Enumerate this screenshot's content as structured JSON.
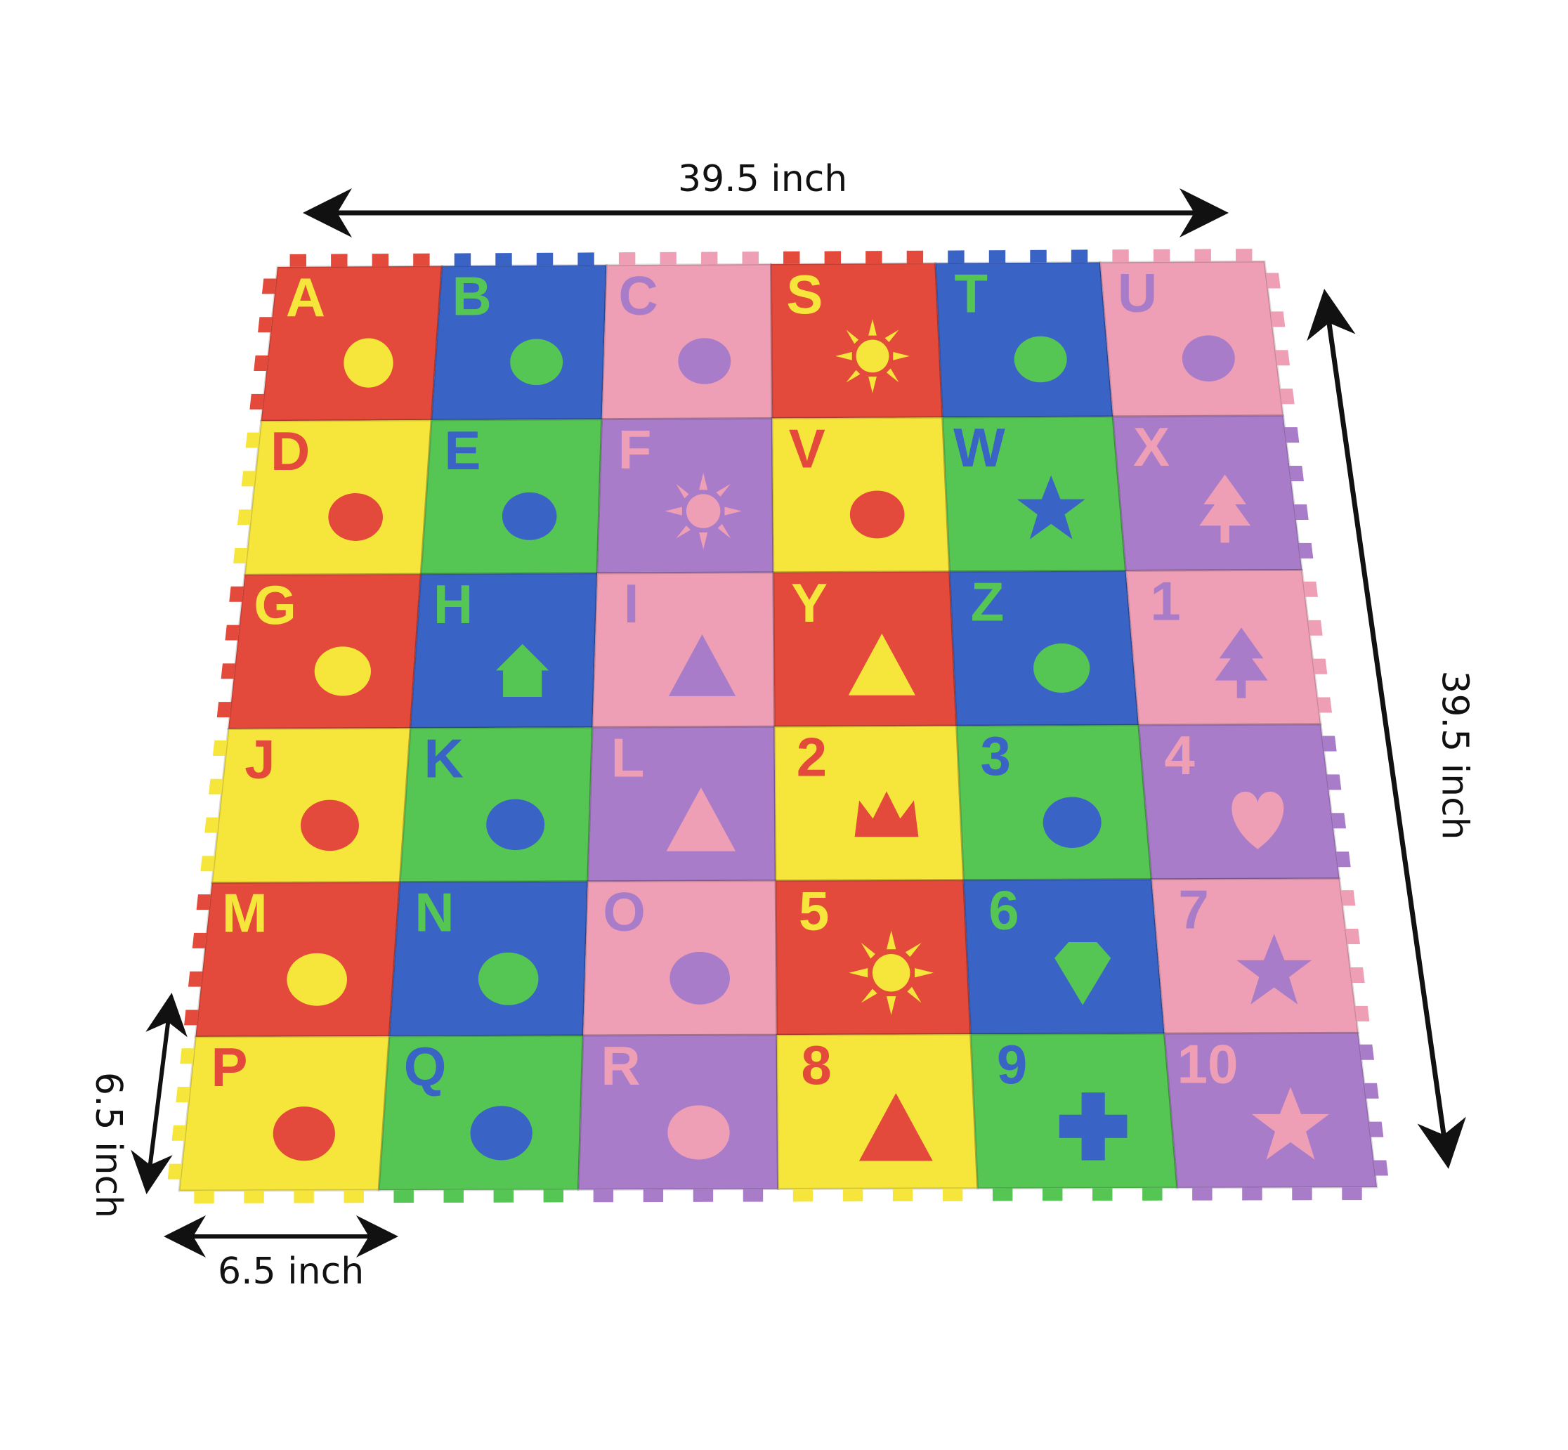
{
  "dimensions": {
    "top": "39.5 inch",
    "right": "39.5 inch",
    "tile_side": "6.5 inch",
    "tile_bottom": "6.5 inch"
  },
  "colors": {
    "red": "#e34a3b",
    "blue": "#3a63c6",
    "pink": "#ee9fb5",
    "yellow": "#f6e53a",
    "green": "#55c553",
    "purple": "#a97cc9",
    "arrow": "#111111"
  },
  "tiles": [
    {
      "label": "A",
      "bg": "red",
      "fg": "yellow",
      "icon": "apple-icon"
    },
    {
      "label": "B",
      "bg": "blue",
      "fg": "green",
      "icon": "bird-icon"
    },
    {
      "label": "C",
      "bg": "pink",
      "fg": "purple",
      "icon": "cat-icon"
    },
    {
      "label": "S",
      "bg": "red",
      "fg": "yellow",
      "icon": "sun-icon"
    },
    {
      "label": "T",
      "bg": "blue",
      "fg": "green",
      "icon": "telephone-icon"
    },
    {
      "label": "U",
      "bg": "pink",
      "fg": "purple",
      "icon": "umbrella-icon"
    },
    {
      "label": "D",
      "bg": "yellow",
      "fg": "red",
      "icon": "duck-icon"
    },
    {
      "label": "E",
      "bg": "green",
      "fg": "blue",
      "icon": "elephant-icon"
    },
    {
      "label": "F",
      "bg": "purple",
      "fg": "pink",
      "icon": "flower-icon"
    },
    {
      "label": "V",
      "bg": "yellow",
      "fg": "red",
      "icon": "violin-icon"
    },
    {
      "label": "W",
      "bg": "green",
      "fg": "blue",
      "icon": "wand-icon"
    },
    {
      "label": "X",
      "bg": "purple",
      "fg": "pink",
      "icon": "tree-icon"
    },
    {
      "label": "G",
      "bg": "red",
      "fg": "yellow",
      "icon": "giraffe-icon"
    },
    {
      "label": "H",
      "bg": "blue",
      "fg": "green",
      "icon": "house-icon"
    },
    {
      "label": "I",
      "bg": "pink",
      "fg": "purple",
      "icon": "ice-cream-icon"
    },
    {
      "label": "Y",
      "bg": "red",
      "fg": "yellow",
      "icon": "yacht-icon"
    },
    {
      "label": "Z",
      "bg": "blue",
      "fg": "green",
      "icon": "zigzag-icon"
    },
    {
      "label": "1",
      "bg": "pink",
      "fg": "purple",
      "icon": "tree-icon"
    },
    {
      "label": "J",
      "bg": "yellow",
      "fg": "red",
      "icon": "jug-icon"
    },
    {
      "label": "K",
      "bg": "green",
      "fg": "blue",
      "icon": "kangaroo-icon"
    },
    {
      "label": "L",
      "bg": "purple",
      "fg": "pink",
      "icon": "lamp-icon"
    },
    {
      "label": "2",
      "bg": "yellow",
      "fg": "red",
      "icon": "crown-icon"
    },
    {
      "label": "3",
      "bg": "green",
      "fg": "blue",
      "icon": "candy-icon"
    },
    {
      "label": "4",
      "bg": "purple",
      "fg": "pink",
      "icon": "heart-icon"
    },
    {
      "label": "M",
      "bg": "red",
      "fg": "yellow",
      "icon": "monkey-icon"
    },
    {
      "label": "N",
      "bg": "blue",
      "fg": "green",
      "icon": "needle-icon"
    },
    {
      "label": "O",
      "bg": "pink",
      "fg": "purple",
      "icon": "octopus-icon"
    },
    {
      "label": "5",
      "bg": "red",
      "fg": "yellow",
      "icon": "flower-icon"
    },
    {
      "label": "6",
      "bg": "blue",
      "fg": "green",
      "icon": "diamond-icon"
    },
    {
      "label": "7",
      "bg": "pink",
      "fg": "purple",
      "icon": "star-icon"
    },
    {
      "label": "P",
      "bg": "yellow",
      "fg": "red",
      "icon": "penguin-icon"
    },
    {
      "label": "Q",
      "bg": "green",
      "fg": "blue",
      "icon": "queen-icon"
    },
    {
      "label": "R",
      "bg": "purple",
      "fg": "pink",
      "icon": "rabbit-icon"
    },
    {
      "label": "8",
      "bg": "yellow",
      "fg": "red",
      "icon": "triangle-icon"
    },
    {
      "label": "9",
      "bg": "green",
      "fg": "blue",
      "icon": "cross-icon"
    },
    {
      "label": "10",
      "bg": "purple",
      "fg": "pink",
      "icon": "sparkle-icon"
    }
  ]
}
